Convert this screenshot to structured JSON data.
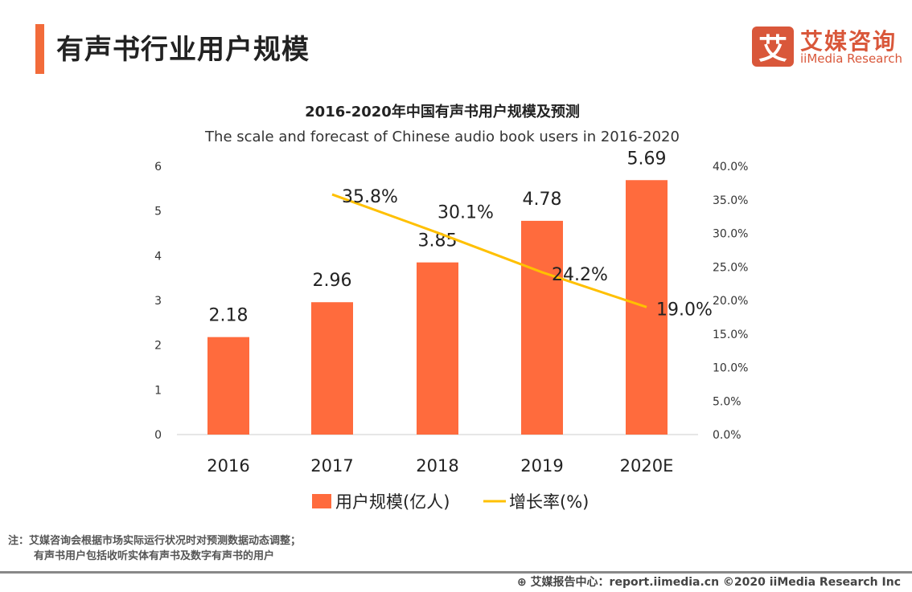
{
  "header": {
    "title": "有声书行业用户规模",
    "logo_mark": "艾",
    "logo_cn": "艾媒咨询",
    "logo_en": "iiMedia Research"
  },
  "chart_data": {
    "type": "bar+line",
    "title": "2016-2020年中国有声书用户规模及预测",
    "subtitle": "The scale and forecast of Chinese audio book users in 2016-2020",
    "categories": [
      "2016",
      "2017",
      "2018",
      "2019",
      "2020E"
    ],
    "series": [
      {
        "name": "用户规模(亿人)",
        "type": "bar",
        "axis": "left",
        "color": "#ff6b3d",
        "values": [
          2.18,
          2.96,
          3.85,
          4.78,
          5.69
        ],
        "labels": [
          "2.18",
          "2.96",
          "3.85",
          "4.78",
          "5.69"
        ]
      },
      {
        "name": "增长率(%)",
        "type": "line",
        "axis": "right",
        "color": "#ffc000",
        "values": [
          null,
          35.8,
          30.1,
          24.2,
          19.0
        ],
        "labels": [
          "",
          "35.8%",
          "30.1%",
          "24.2%",
          "19.0%"
        ]
      }
    ],
    "left_axis": {
      "ylim": [
        0,
        6
      ],
      "ticks": [
        "0",
        "1",
        "2",
        "3",
        "4",
        "5",
        "6"
      ]
    },
    "right_axis": {
      "ylim": [
        0,
        40
      ],
      "ticks": [
        "0.0%",
        "5.0%",
        "10.0%",
        "15.0%",
        "20.0%",
        "25.0%",
        "30.0%",
        "35.0%",
        "40.0%"
      ]
    },
    "legend": "bottom"
  },
  "notes": [
    "注：艾媒咨询会根据市场实际运行状况时对预测数据动态调整；",
    "有声书用户包括收听实体有声书及数字有声书的用户"
  ],
  "footer": "艾媒报告中心：report.iimedia.cn  ©2020 iiMedia Research Inc"
}
